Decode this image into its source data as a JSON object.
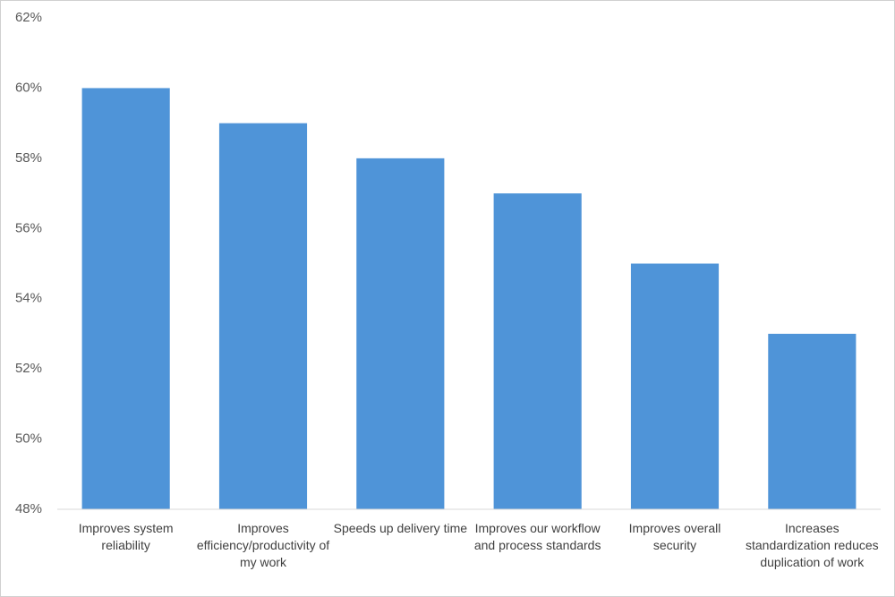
{
  "chart_data": {
    "type": "bar",
    "categories": [
      "Improves system reliability",
      "Improves efficiency/productivity of my work",
      "Speeds up delivery time",
      "Improves our workflow and process standards",
      "Improves overall security",
      "Increases standardization reduces duplication of work"
    ],
    "values": [
      60,
      59,
      58,
      57,
      55,
      53
    ],
    "color": "#4f94d8",
    "ylim": [
      48,
      62
    ],
    "yticks": [
      {
        "value": 48,
        "label": "48%"
      },
      {
        "value": 50,
        "label": "50%"
      },
      {
        "value": 52,
        "label": "52%"
      },
      {
        "value": 54,
        "label": "54%"
      },
      {
        "value": 56,
        "label": "56%"
      },
      {
        "value": 58,
        "label": "58%"
      },
      {
        "value": 60,
        "label": "60%"
      },
      {
        "value": 62,
        "label": "62%"
      }
    ],
    "grid": false
  }
}
